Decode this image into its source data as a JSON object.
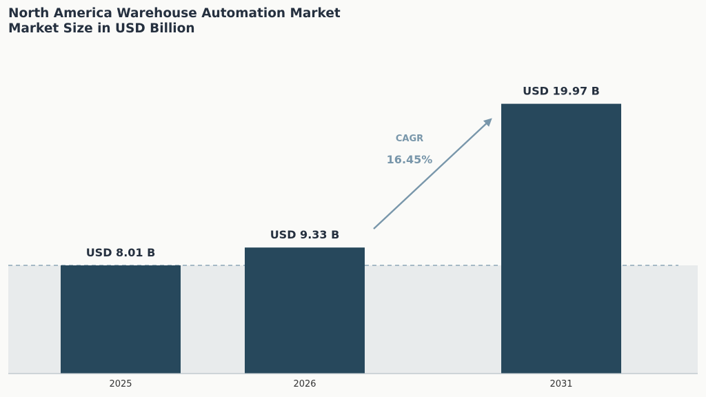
{
  "chart_data": {
    "type": "bar",
    "title": "North America Warehouse Automation Market",
    "subtitle": "Market Size in USD Billion",
    "categories": [
      "2025",
      "2026",
      "2031"
    ],
    "values": [
      8.01,
      9.33,
      19.97
    ],
    "value_labels": [
      "USD 8.01 B",
      "USD 9.33 B",
      "USD 19.97 B"
    ],
    "ylim": [
      0,
      20.8
    ],
    "grid": false,
    "baseline_reference_value": 8.01,
    "annotation": {
      "label": "CAGR",
      "value": "16.45%",
      "from_category": "2026",
      "to_category": "2031"
    },
    "colors": {
      "bar": "#27485c",
      "band": "#e8ebec",
      "arrow": "#7896aa",
      "dashed_line": "#7896aa",
      "text": "#25303f",
      "tick_text": "#333333"
    }
  }
}
